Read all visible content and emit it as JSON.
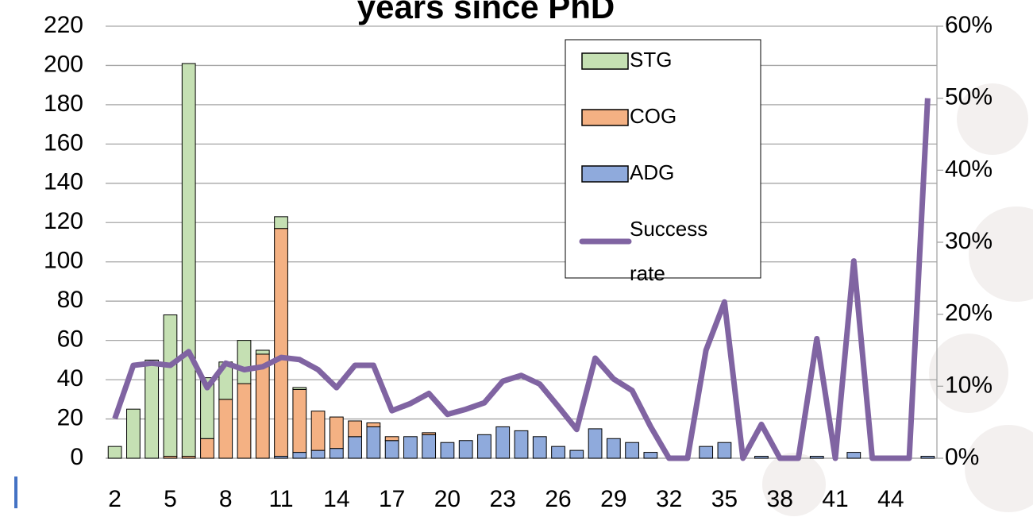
{
  "chart_data": {
    "type": "bar",
    "title": "years since PhD",
    "categories": [
      2,
      null,
      null,
      5,
      null,
      null,
      8,
      null,
      null,
      11,
      null,
      null,
      14,
      null,
      null,
      17,
      null,
      null,
      20,
      null,
      null,
      23,
      null,
      null,
      26,
      null,
      null,
      29,
      null,
      null,
      32,
      null,
      null,
      35,
      null,
      null,
      38,
      null,
      null,
      41,
      null,
      null,
      44,
      null,
      null
    ],
    "series": [
      {
        "name": "STG",
        "color": "#c5e0b3",
        "values": [
          6,
          25,
          50,
          72,
          200,
          31,
          19,
          22,
          2,
          6,
          1,
          0,
          0,
          0,
          0,
          0,
          0,
          0,
          0,
          0,
          0,
          0,
          0,
          0,
          0,
          0,
          0,
          0,
          0,
          0,
          0,
          0,
          0,
          0,
          0,
          0,
          0,
          0,
          0,
          0,
          0,
          0,
          0,
          0,
          0
        ]
      },
      {
        "name": "COG",
        "color": "#f4b183",
        "values": [
          0,
          0,
          0,
          1,
          1,
          10,
          30,
          38,
          53,
          116,
          32,
          20,
          16,
          8,
          2,
          2,
          0,
          1,
          0,
          0,
          0,
          0,
          0,
          0,
          0,
          0,
          0,
          0,
          0,
          0,
          0,
          0,
          0,
          0,
          0,
          0,
          0,
          0,
          0,
          0,
          0,
          0,
          0,
          0,
          0
        ]
      },
      {
        "name": "ADG",
        "color": "#8faadc",
        "values": [
          0,
          0,
          0,
          0,
          0,
          0,
          0,
          0,
          0,
          1,
          3,
          4,
          5,
          11,
          16,
          9,
          11,
          12,
          8,
          9,
          12,
          16,
          14,
          11,
          6,
          4,
          15,
          10,
          8,
          3,
          0,
          0,
          6,
          8,
          0,
          1,
          0,
          0,
          1,
          0,
          3,
          0,
          0,
          0,
          1
        ]
      },
      {
        "name": "Success rate",
        "color": "#8064a2",
        "axis": "y2",
        "type": "line",
        "values": [
          5.5,
          12.9,
          13.2,
          12.9,
          14.8,
          9.8,
          13.2,
          12.3,
          12.7,
          14.0,
          13.7,
          12.3,
          9.8,
          12.9,
          12.9,
          6.6,
          7.6,
          9.0,
          6.1,
          6.8,
          7.7,
          10.7,
          11.5,
          10.3,
          7.2,
          4.0,
          13.9,
          11.0,
          9.4,
          4.4,
          0,
          0,
          15,
          21.7,
          0,
          4.7,
          0,
          0,
          16.6,
          0,
          27.4,
          0,
          0,
          0,
          50
        ]
      }
    ],
    "stack_order": [
      "ADG",
      "COG",
      "STG"
    ],
    "ylim": [
      0,
      220
    ],
    "yticks": [
      0,
      20,
      40,
      60,
      80,
      100,
      120,
      140,
      160,
      180,
      200,
      220
    ],
    "y2lim": [
      0,
      60
    ],
    "y2ticks": [
      {
        "value": 0,
        "label": "0%"
      },
      {
        "value": 10,
        "label": "10%"
      },
      {
        "value": 20,
        "label": "20%"
      },
      {
        "value": 30,
        "label": "30%"
      },
      {
        "value": 40,
        "label": "40%"
      },
      {
        "value": 50,
        "label": "50%"
      },
      {
        "value": 60,
        "label": "60%"
      }
    ],
    "grid": true,
    "legend": "upper right"
  }
}
